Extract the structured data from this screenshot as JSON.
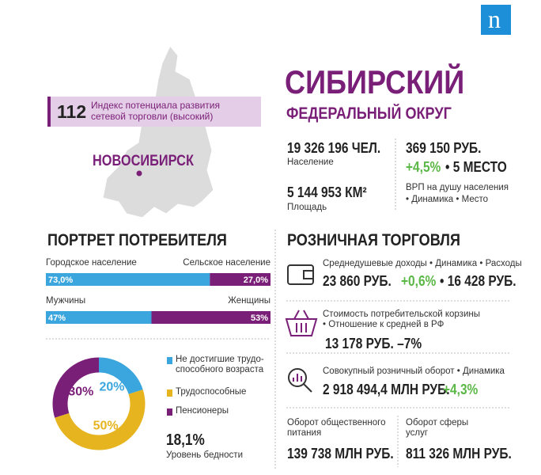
{
  "logo": "n",
  "header": {
    "title": "СИБИРСКИЙ",
    "subtitle": "ФЕДЕРАЛЬНЫЙ ОКРУГ"
  },
  "map": {
    "index_value": "112",
    "index_label": "Индекс потенциала развития\nсетевой торговли (высокий)",
    "city": "НОВОСИБИРСК"
  },
  "overview": {
    "population": {
      "value": "19 326 196 ЧЕЛ.",
      "label": "Население"
    },
    "area": {
      "value": "5 144 953 КМ²",
      "label": "Площадь"
    },
    "grp": {
      "value": "369 150 РУБ.",
      "dynamics": "+4,5%",
      "rank": "• 5 МЕСТО",
      "label": "ВРП на душу населения",
      "sublabel": "• Динамика • Место"
    }
  },
  "portrait": {
    "title": "ПОРТРЕТ ПОТРЕБИТЕЛЯ",
    "bars": [
      {
        "categories": [
          "Городское население",
          "Сельское население"
        ],
        "values": [
          73.0,
          27.0
        ],
        "value_labels": [
          "73,0%",
          "27,0%"
        ],
        "colors": [
          "#3ba6dd",
          "#7a1f78"
        ]
      },
      {
        "categories": [
          "Мужчины",
          "Женщины"
        ],
        "values": [
          47,
          53
        ],
        "value_labels": [
          "47%",
          "53%"
        ],
        "colors": [
          "#3ba6dd",
          "#7a1f78"
        ]
      }
    ],
    "age": {
      "categories": [
        "Не достигшие трудо-\nспособного возраста",
        "Трудоспособные",
        "Пенсионеры"
      ],
      "values": [
        20,
        50,
        30
      ],
      "value_labels": [
        "20%",
        "50%",
        "30%"
      ],
      "colors": [
        "#3ba6dd",
        "#e6b41f",
        "#7a1f78"
      ]
    },
    "poverty": {
      "value": "18,1%",
      "label": "Уровень бедности"
    }
  },
  "retail": {
    "title": "РОЗНИЧНАЯ ТОРГОВЛЯ",
    "income": {
      "label": "Среднедушевые доходы • Динамика • Расходы",
      "income": "23 860 РУБ.",
      "dynamics": "+0,6%",
      "expenses": "• 16 428 РУБ."
    },
    "basket": {
      "label": "Стоимость потребительской корзины\n• Отношение к средней в РФ",
      "value": "13 178 РУБ. –7%"
    },
    "turnover": {
      "label": "Совокупный розничный оборот • Динамика",
      "value": "2 918 494,4 МЛН РУБ.",
      "dynamics": "+4,3%"
    },
    "catering": {
      "label": "Оборот общественного\nпитания",
      "value": "139 738 МЛН РУБ."
    },
    "services": {
      "label": "Оборот сферы\nуслуг",
      "value": "811 326 МЛН РУБ."
    }
  }
}
